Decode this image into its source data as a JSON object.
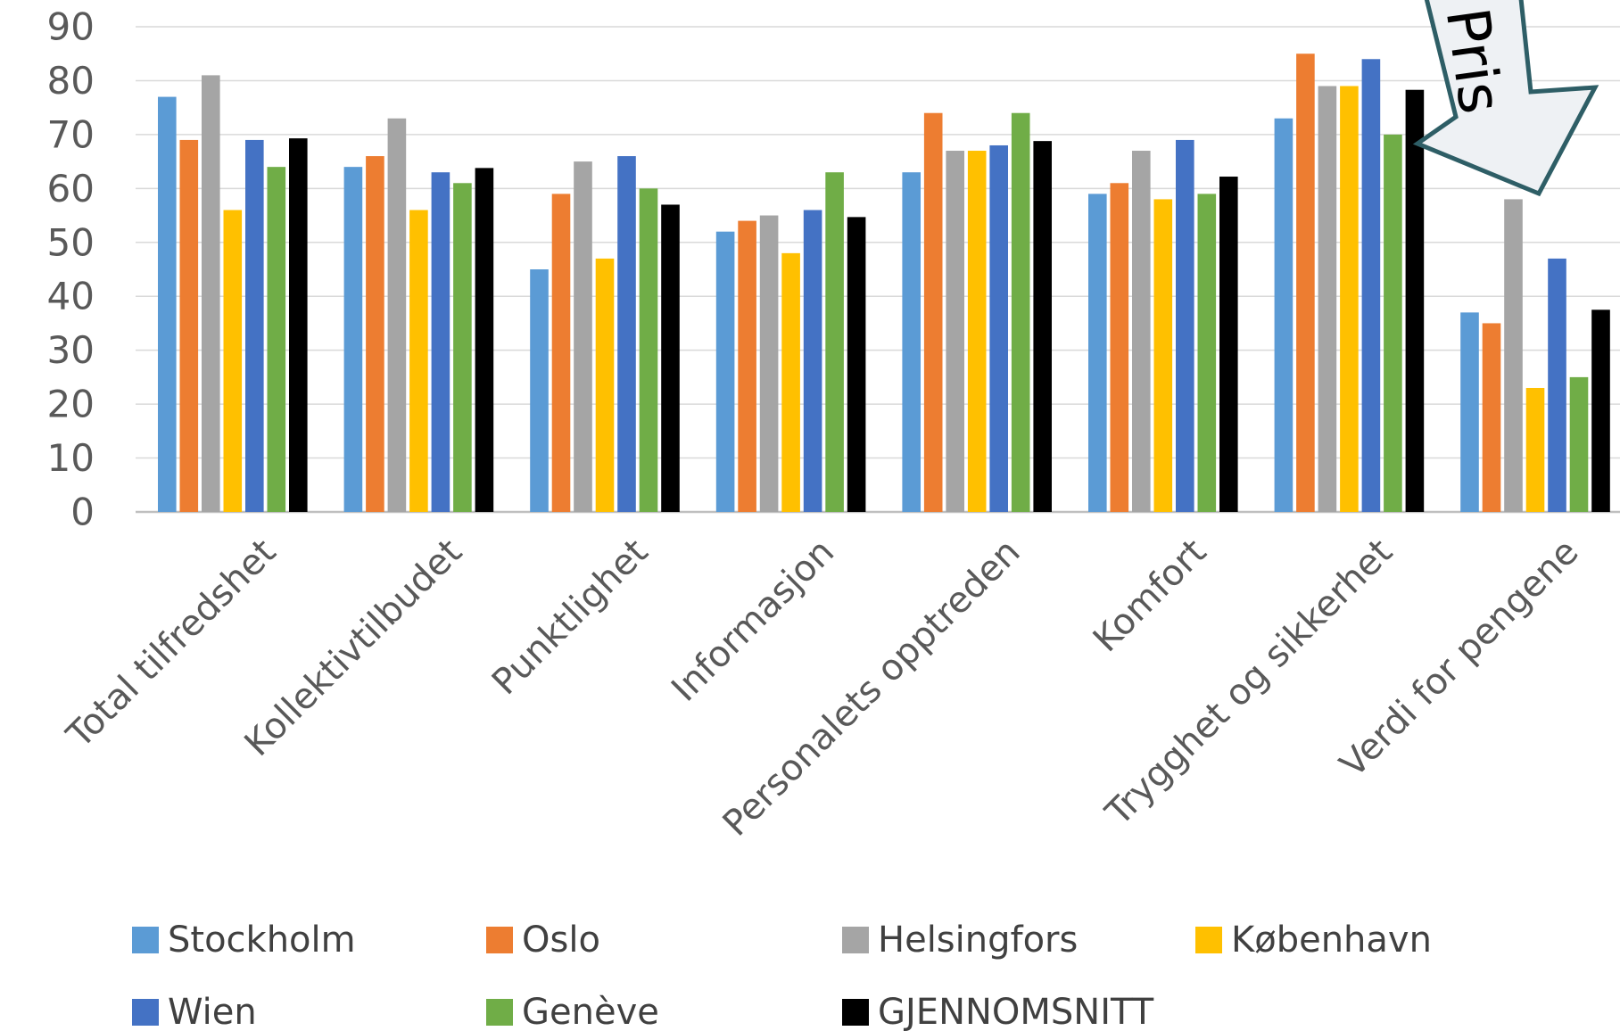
{
  "chart_data": {
    "type": "bar",
    "categories": [
      "Total tilfredshet",
      "Kollektivtilbudet",
      "Punktlighet",
      "Informasjon",
      "Personalets opptreden",
      "Komfort",
      "Trygghet og sikkerhet",
      "Verdi for pengene"
    ],
    "series": [
      {
        "name": "Stockholm",
        "color": "#5B9BD5",
        "values": [
          77,
          64,
          45,
          52,
          63,
          59,
          73,
          37
        ]
      },
      {
        "name": "Oslo",
        "color": "#ED7D31",
        "values": [
          69,
          66,
          59,
          54,
          74,
          61,
          85,
          35
        ]
      },
      {
        "name": "Helsingfors",
        "color": "#A5A5A5",
        "values": [
          81,
          73,
          65,
          55,
          67,
          67,
          79,
          58
        ]
      },
      {
        "name": "København",
        "color": "#FFC000",
        "values": [
          56,
          56,
          47,
          48,
          67,
          58,
          79,
          23
        ]
      },
      {
        "name": "Wien",
        "color": "#4472C4",
        "values": [
          69,
          63,
          66,
          56,
          68,
          69,
          84,
          47
        ]
      },
      {
        "name": "Genève",
        "color": "#70AD47",
        "values": [
          64,
          61,
          60,
          63,
          74,
          59,
          70,
          25
        ]
      },
      {
        "name": "GJENNOMSNITT",
        "color": "#000000",
        "values": [
          69.3,
          63.8,
          57,
          54.7,
          68.8,
          62.2,
          78.3,
          37.5
        ]
      }
    ],
    "yticks": [
      0,
      10,
      20,
      30,
      40,
      50,
      60,
      70,
      80,
      90
    ],
    "ylim": [
      0,
      90
    ],
    "grid": true,
    "legend_position": "bottom",
    "annotation": {
      "text": "Pris",
      "shape": "arrow",
      "fill": "#EEF1F4",
      "stroke": "#2E5E66"
    }
  }
}
